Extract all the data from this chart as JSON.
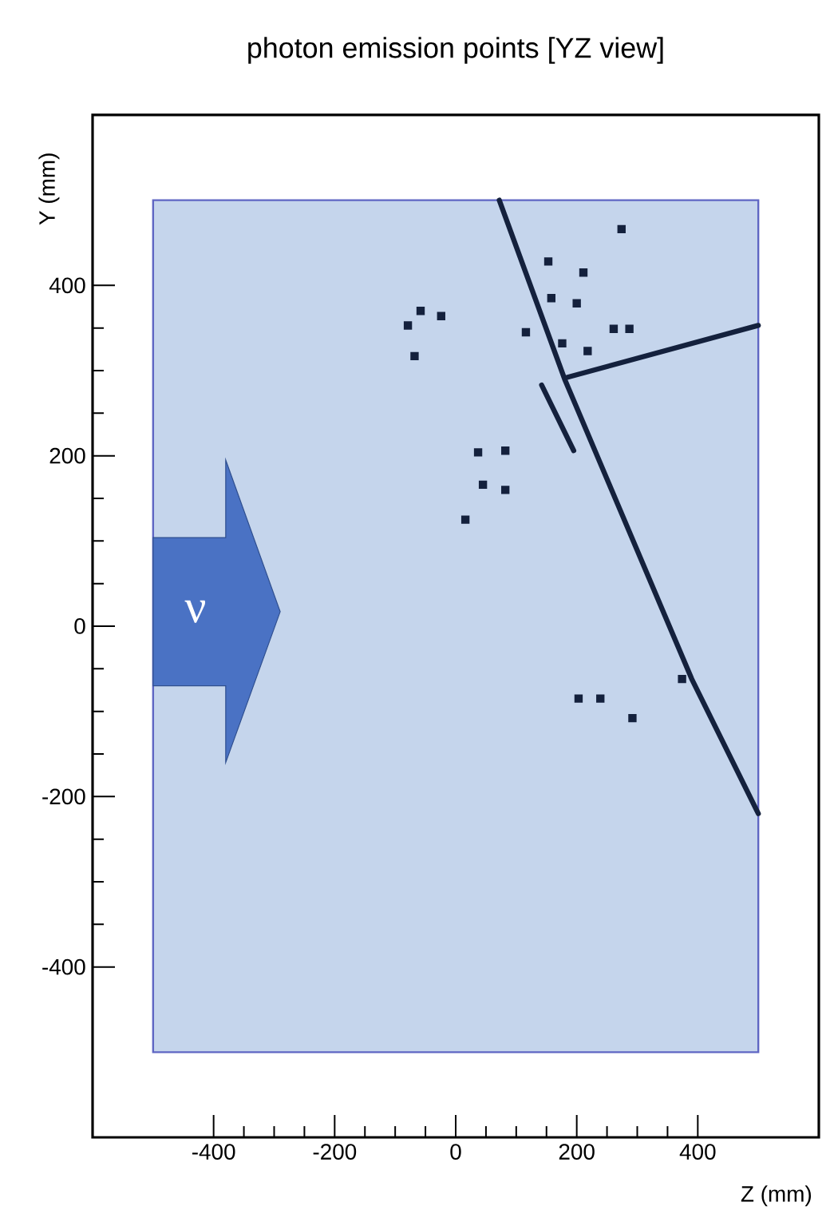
{
  "chart_data": {
    "type": "scatter",
    "title": "photon emission points [YZ view]",
    "xlabel": "Z (mm)",
    "ylabel": "Y (mm)",
    "xlim": [
      -600,
      600
    ],
    "ylim": [
      -600,
      600
    ],
    "xticks": [
      -400,
      -200,
      0,
      200,
      400
    ],
    "yticks": [
      -400,
      -200,
      0,
      200,
      400
    ],
    "grid": false,
    "annotations": [
      "ν"
    ],
    "series": [
      {
        "type": "area",
        "color": "#c5d5ec",
        "x": [
          -500,
          -500,
          500,
          500
        ],
        "values": [
          -500,
          500,
          500,
          -500
        ]
      },
      {
        "marker": "square",
        "color": "#14213d",
        "x": [
          -58,
          -79,
          -24,
          -68,
          37,
          82,
          45,
          82,
          16,
          203,
          239,
          292,
          374,
          274,
          153,
          211,
          158,
          200,
          116,
          261,
          287,
          218,
          176
        ],
        "values": [
          370,
          353,
          364,
          317,
          204,
          206,
          166,
          160,
          125,
          -85,
          -85,
          -108,
          -62,
          466,
          428,
          415,
          385,
          379,
          345,
          349,
          349,
          323,
          332
        ]
      },
      {
        "type": "line",
        "color": "#14213d",
        "x": [
          72,
          180,
          390,
          500
        ],
        "values": [
          500,
          290,
          -62,
          -220
        ]
      },
      {
        "type": "line",
        "color": "#14213d",
        "x": [
          184,
          500
        ],
        "values": [
          292,
          353
        ]
      },
      {
        "type": "line",
        "color": "#14213d",
        "x": [
          142,
          195
        ],
        "values": [
          283,
          206
        ]
      }
    ]
  }
}
